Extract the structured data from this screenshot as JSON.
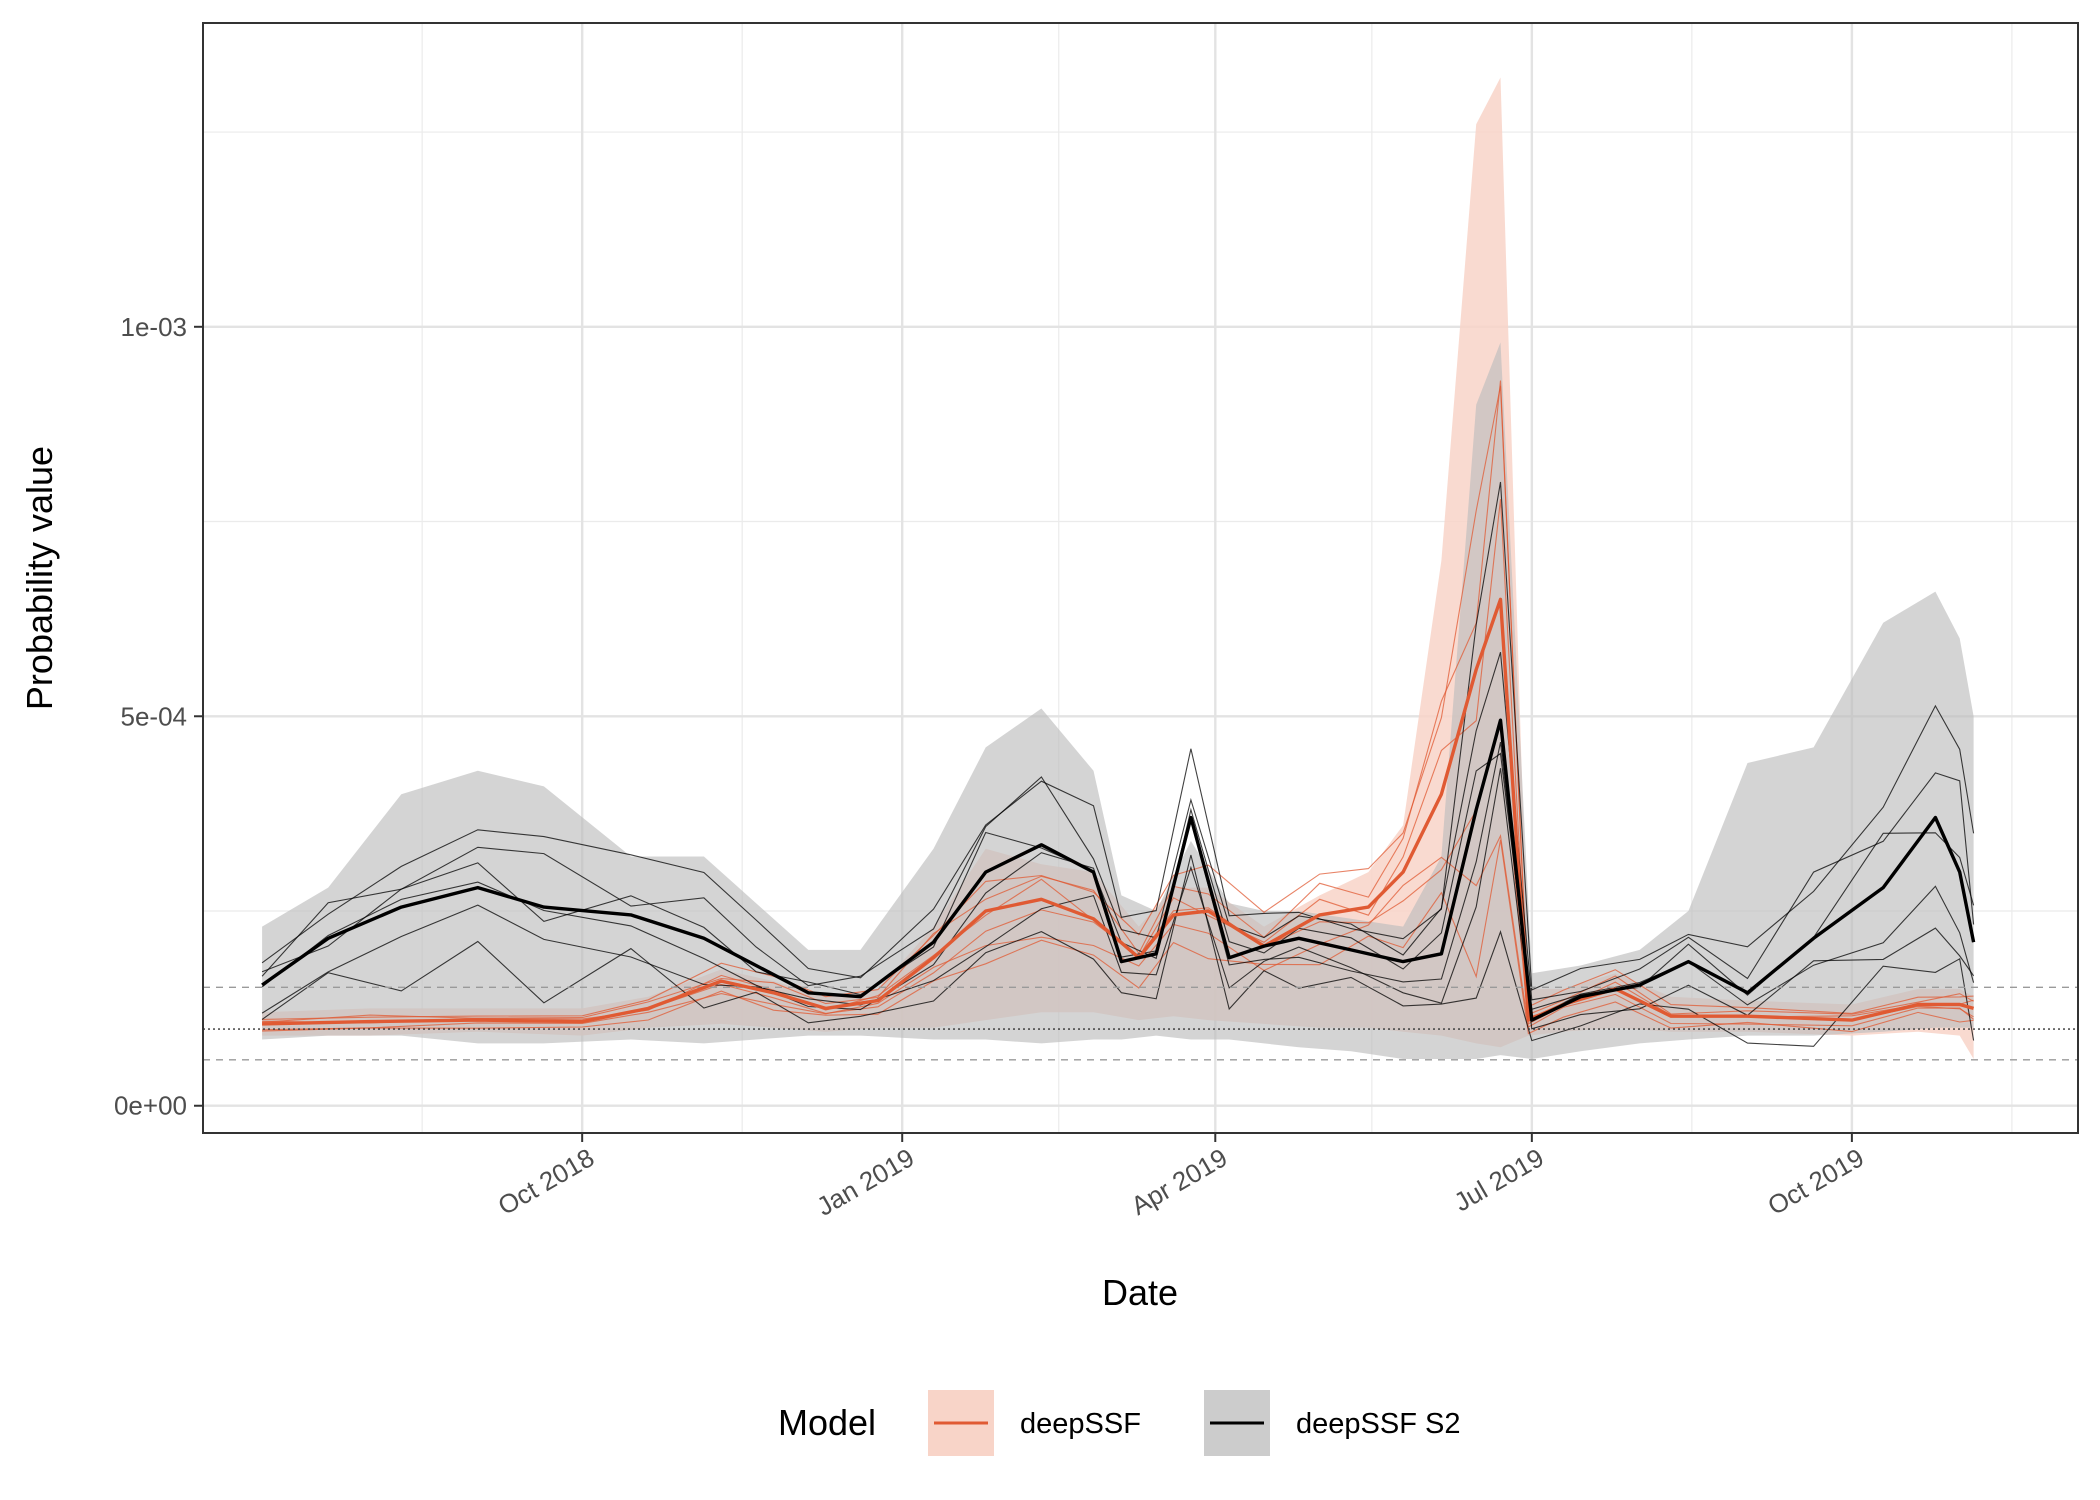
{
  "chart_data": {
    "type": "line",
    "xlabel": "Date",
    "ylabel": "Probability value",
    "x_range": [
      "2018-06-14",
      "2019-12-05"
    ],
    "y_range": [
      -3.5e-05,
      0.00139
    ],
    "x_ticks": [
      {
        "date": "2018-10-01",
        "label": "Oct 2018"
      },
      {
        "date": "2019-01-01",
        "label": "Jan 2019"
      },
      {
        "date": "2019-04-01",
        "label": "Apr 2019"
      },
      {
        "date": "2019-07-01",
        "label": "Jul 2019"
      },
      {
        "date": "2019-10-01",
        "label": "Oct 2019"
      }
    ],
    "x_minor_ticks": [
      "2018-08-16",
      "2018-11-16",
      "2019-02-15",
      "2019-05-16",
      "2019-08-16",
      "2019-11-16"
    ],
    "y_ticks": [
      {
        "value": 0,
        "label": "0e+00"
      },
      {
        "value": 0.0005,
        "label": "5e-04"
      },
      {
        "value": 0.001,
        "label": "1e-03"
      }
    ],
    "y_minor_ticks": [
      0.00025,
      0.00075,
      0.00125
    ],
    "reference_lines": {
      "dotted": 9.84e-05,
      "dashed": [
        5.9e-05,
        0.000152
      ]
    },
    "grid": true,
    "legend": {
      "title": "Model",
      "position": "bottom",
      "entries": [
        {
          "label": "deepSSF",
          "line_color": "#e05a33",
          "fill_color": "#f8d4c8"
        },
        {
          "label": "deepSSF S2",
          "line_color": "#000000",
          "fill_color": "#cccccc"
        }
      ]
    },
    "series": [
      {
        "name": "deepSSF",
        "color": "#e05a33",
        "band_color": "#f8d4c8",
        "x": [
          "2018-07-01",
          "2018-08-01",
          "2018-09-01",
          "2018-10-01",
          "2018-10-20",
          "2018-11-10",
          "2018-11-25",
          "2018-12-10",
          "2018-12-25",
          "2019-01-10",
          "2019-01-25",
          "2019-02-10",
          "2019-02-25",
          "2019-03-10",
          "2019-03-20",
          "2019-03-30",
          "2019-04-15",
          "2019-05-01",
          "2019-05-15",
          "2019-05-25",
          "2019-06-05",
          "2019-06-15",
          "2019-06-22",
          "2019-06-30",
          "2019-07-10",
          "2019-07-25",
          "2019-08-10",
          "2019-09-01",
          "2019-10-01",
          "2019-10-20",
          "2019-11-01",
          "2019-11-05"
        ],
        "mean": [
          0.000105,
          0.000108,
          0.00011,
          0.000108,
          0.000125,
          0.00016,
          0.000145,
          0.000125,
          0.000135,
          0.00019,
          0.00025,
          0.000265,
          0.00024,
          0.00019,
          0.000245,
          0.00025,
          0.000205,
          0.000245,
          0.000255,
          0.0003,
          0.0004,
          0.00056,
          0.00065,
          0.00011,
          0.00013,
          0.00015,
          0.000115,
          0.000115,
          0.00011,
          0.00013,
          0.00013,
          0.000125
        ],
        "band_low": [
          9e-05,
          9e-05,
          9.5e-05,
          9e-05,
          0.0001,
          0.000105,
          0.0001,
          9.5e-05,
          0.0001,
          0.0001,
          0.00011,
          0.00012,
          0.00012,
          0.00011,
          0.000115,
          0.00011,
          0.000105,
          0.0001,
          0.0001,
          9.5e-05,
          9e-05,
          8e-05,
          7.5e-05,
          9e-05,
          9.5e-05,
          0.0001,
          9.5e-05,
          9.5e-05,
          9e-05,
          9.5e-05,
          9e-05,
          6e-05
        ],
        "band_high": [
          0.00012,
          0.000125,
          0.000125,
          0.000125,
          0.00014,
          0.000175,
          0.00016,
          0.00014,
          0.00015,
          0.00023,
          0.00033,
          0.00031,
          0.0003,
          0.00023,
          0.00028,
          0.00028,
          0.00023,
          0.00027,
          0.0003,
          0.00036,
          0.0007,
          0.00126,
          0.00132,
          0.00015,
          0.00015,
          0.00017,
          0.00014,
          0.000135,
          0.00013,
          0.00015,
          0.00015,
          0.00014
        ]
      },
      {
        "name": "deepSSF S2",
        "color": "#000000",
        "band_color": "#bdbdbd",
        "x": [
          "2018-07-01",
          "2018-07-20",
          "2018-08-10",
          "2018-09-01",
          "2018-09-20",
          "2018-10-15",
          "2018-11-05",
          "2018-11-20",
          "2018-12-05",
          "2018-12-20",
          "2019-01-10",
          "2019-01-25",
          "2019-02-10",
          "2019-02-25",
          "2019-03-05",
          "2019-03-15",
          "2019-03-25",
          "2019-04-05",
          "2019-04-15",
          "2019-04-25",
          "2019-05-10",
          "2019-05-25",
          "2019-06-05",
          "2019-06-15",
          "2019-06-22",
          "2019-07-01",
          "2019-07-15",
          "2019-08-01",
          "2019-08-15",
          "2019-09-01",
          "2019-09-20",
          "2019-10-10",
          "2019-10-25",
          "2019-11-01",
          "2019-11-05"
        ],
        "mean": [
          0.000155,
          0.000215,
          0.000255,
          0.00028,
          0.000255,
          0.000245,
          0.000215,
          0.00018,
          0.000145,
          0.00014,
          0.00021,
          0.0003,
          0.000335,
          0.0003,
          0.000185,
          0.000195,
          0.00037,
          0.00019,
          0.000205,
          0.000215,
          0.0002,
          0.000185,
          0.000195,
          0.00038,
          0.000495,
          0.00011,
          0.00014,
          0.000155,
          0.000185,
          0.000145,
          0.000215,
          0.00028,
          0.00037,
          0.0003,
          0.00021
        ],
        "band_low": [
          8.5e-05,
          9e-05,
          9e-05,
          8e-05,
          8e-05,
          8.5e-05,
          8e-05,
          8.5e-05,
          9e-05,
          9e-05,
          8.5e-05,
          8.5e-05,
          8e-05,
          8.5e-05,
          8.5e-05,
          9e-05,
          8.5e-05,
          8.5e-05,
          8e-05,
          7.5e-05,
          7e-05,
          6e-05,
          6e-05,
          6e-05,
          6.5e-05,
          6e-05,
          7e-05,
          8e-05,
          8.5e-05,
          9e-05,
          9e-05,
          9.5e-05,
          0.0001,
          0.0001,
          0.0001
        ],
        "band_high": [
          0.00023,
          0.00028,
          0.0004,
          0.00043,
          0.00041,
          0.00032,
          0.00032,
          0.00026,
          0.0002,
          0.0002,
          0.00033,
          0.00046,
          0.00051,
          0.00043,
          0.00027,
          0.00025,
          0.00034,
          0.00026,
          0.00025,
          0.00025,
          0.00024,
          0.00023,
          0.00032,
          0.0009,
          0.00098,
          0.00017,
          0.00018,
          0.0002,
          0.00025,
          0.00044,
          0.00046,
          0.00062,
          0.00066,
          0.0006,
          0.0005
        ]
      }
    ]
  }
}
